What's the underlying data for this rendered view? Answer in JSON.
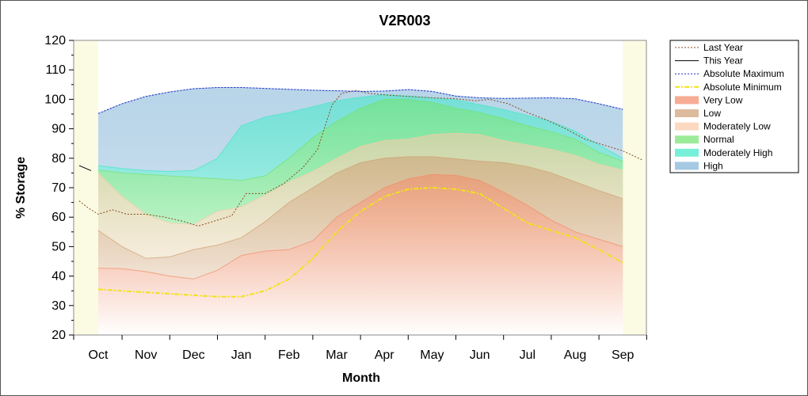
{
  "chart_data": {
    "type": "area",
    "title": "V2R003",
    "xlabel": "Month",
    "ylabel": "% Storage",
    "ylim": [
      20,
      120
    ],
    "yticks": [
      20,
      30,
      40,
      50,
      60,
      70,
      80,
      90,
      100,
      110,
      120
    ],
    "categories": [
      "Oct",
      "Nov",
      "Dec",
      "Jan",
      "Feb",
      "Mar",
      "Apr",
      "May",
      "Jun",
      "Jul",
      "Aug",
      "Sep"
    ],
    "legend_position": "right",
    "bands": [
      {
        "name": "High",
        "color": "#7fb2d6",
        "lower": "Moderately High upper",
        "upper": [
          [
            0,
            95.2
          ],
          [
            0.5,
            98.5
          ],
          [
            1,
            101
          ],
          [
            1.5,
            102.5
          ],
          [
            2,
            103.6
          ],
          [
            2.5,
            104
          ],
          [
            3,
            104
          ],
          [
            3.5,
            103.7
          ],
          [
            4,
            103.4
          ],
          [
            4.5,
            103.1
          ],
          [
            5,
            102.9
          ],
          [
            5.5,
            102.7
          ],
          [
            6,
            102.8
          ],
          [
            6.5,
            103.3
          ],
          [
            7,
            102.7
          ],
          [
            7.5,
            101.1
          ],
          [
            8,
            100.5
          ],
          [
            8.5,
            100.3
          ],
          [
            9,
            100.4
          ],
          [
            9.5,
            100.5
          ],
          [
            10,
            100.2
          ],
          [
            10.5,
            98.5
          ],
          [
            11,
            96.6
          ]
        ]
      },
      {
        "name": "Moderately High",
        "color": "#3ee8c8",
        "lower": "Normal upper",
        "upper": [
          [
            0,
            77.5
          ],
          [
            0.5,
            76.5
          ],
          [
            1,
            75.8
          ],
          [
            1.5,
            75.5
          ],
          [
            2,
            75.8
          ],
          [
            2.5,
            80
          ],
          [
            3,
            91
          ],
          [
            3.5,
            94
          ],
          [
            4,
            95.5
          ],
          [
            4.5,
            97.5
          ],
          [
            5,
            99.5
          ],
          [
            5.5,
            100.7
          ],
          [
            6,
            101.6
          ],
          [
            6.5,
            101.1
          ],
          [
            7,
            100.5
          ],
          [
            7.5,
            99.8
          ],
          [
            8,
            98.2
          ],
          [
            8.5,
            96.5
          ],
          [
            9,
            94.5
          ],
          [
            9.5,
            92.5
          ],
          [
            10,
            89.2
          ],
          [
            10.5,
            84.5
          ],
          [
            11,
            80
          ]
        ]
      },
      {
        "name": "Normal",
        "color": "#72e36e",
        "lower": "Moderately Low upper",
        "upper": [
          [
            0,
            76
          ],
          [
            0.5,
            75
          ],
          [
            1,
            74.5
          ],
          [
            1.5,
            74
          ],
          [
            2,
            73.5
          ],
          [
            2.5,
            73
          ],
          [
            3,
            72.5
          ],
          [
            3.5,
            74
          ],
          [
            4,
            80
          ],
          [
            4.5,
            87
          ],
          [
            5,
            92.5
          ],
          [
            5.5,
            97
          ],
          [
            6,
            100
          ],
          [
            6.5,
            100
          ],
          [
            7,
            99
          ],
          [
            7.5,
            97
          ],
          [
            8,
            95.5
          ],
          [
            8.5,
            93.5
          ],
          [
            9,
            91
          ],
          [
            9.5,
            89
          ],
          [
            10,
            86.5
          ],
          [
            10.5,
            82
          ],
          [
            11,
            79
          ]
        ]
      },
      {
        "name": "Moderately Low",
        "color": "#fbcaa8",
        "lower": "Low upper",
        "upper": [
          [
            0,
            75
          ],
          [
            0.5,
            67
          ],
          [
            1,
            61
          ],
          [
            1.5,
            58
          ],
          [
            2,
            57.5
          ],
          [
            2.5,
            62
          ],
          [
            3,
            63.5
          ],
          [
            3.5,
            67.5
          ],
          [
            4,
            72
          ],
          [
            4.5,
            75.5
          ],
          [
            5,
            80
          ],
          [
            5.5,
            84
          ],
          [
            6,
            86
          ],
          [
            6.5,
            86.5
          ],
          [
            7,
            88
          ],
          [
            7.5,
            88.5
          ],
          [
            8,
            88
          ],
          [
            8.5,
            86
          ],
          [
            9,
            84.5
          ],
          [
            9.5,
            83
          ],
          [
            10,
            81
          ],
          [
            10.5,
            78
          ],
          [
            11,
            76
          ]
        ]
      },
      {
        "name": "Low",
        "color": "#cd9f72",
        "lower": "Very Low upper",
        "upper": [
          [
            0,
            55.5
          ],
          [
            0.5,
            50
          ],
          [
            1,
            46
          ],
          [
            1.5,
            46.5
          ],
          [
            2,
            49
          ],
          [
            2.5,
            50.5
          ],
          [
            3,
            53
          ],
          [
            3.5,
            58.5
          ],
          [
            4,
            65
          ],
          [
            4.5,
            70
          ],
          [
            5,
            75
          ],
          [
            5.5,
            78.5
          ],
          [
            6,
            80
          ],
          [
            6.5,
            80.5
          ],
          [
            7,
            80.5
          ],
          [
            7.5,
            79.8
          ],
          [
            8,
            79
          ],
          [
            8.5,
            78.5
          ],
          [
            9,
            77.2
          ],
          [
            9.5,
            75
          ],
          [
            10,
            72
          ],
          [
            10.5,
            69
          ],
          [
            11,
            66.3
          ]
        ]
      },
      {
        "name": "Very Low",
        "color": "#f38a66",
        "lower": "axis floor",
        "upper": [
          [
            0,
            42.7
          ],
          [
            0.5,
            42.5
          ],
          [
            1,
            41.5
          ],
          [
            1.5,
            40
          ],
          [
            2,
            39
          ],
          [
            2.5,
            42
          ],
          [
            3,
            47
          ],
          [
            3.5,
            48.5
          ],
          [
            4,
            49
          ],
          [
            4.5,
            52
          ],
          [
            5,
            60
          ],
          [
            5.5,
            65
          ],
          [
            6,
            70
          ],
          [
            6.5,
            73
          ],
          [
            7,
            74.5
          ],
          [
            7.5,
            74.2
          ],
          [
            8,
            72.5
          ],
          [
            8.5,
            68.5
          ],
          [
            9,
            64
          ],
          [
            9.5,
            59
          ],
          [
            10,
            55
          ],
          [
            10.5,
            52.5
          ],
          [
            11,
            50
          ]
        ]
      }
    ],
    "series": [
      {
        "name": "Last Year",
        "color": "#8a4a1c",
        "style": "dotted",
        "points": [
          [
            -0.4,
            65.5
          ],
          [
            -0.2,
            63
          ],
          [
            0,
            61
          ],
          [
            0.3,
            62.5
          ],
          [
            0.6,
            61
          ],
          [
            1,
            61
          ],
          [
            1.4,
            60
          ],
          [
            1.8,
            58.5
          ],
          [
            2.1,
            57
          ],
          [
            2.4,
            58.5
          ],
          [
            2.8,
            60.5
          ],
          [
            3.1,
            68
          ],
          [
            3.5,
            68
          ],
          [
            3.9,
            71.5
          ],
          [
            4.3,
            77
          ],
          [
            4.6,
            83
          ],
          [
            4.9,
            98
          ],
          [
            5.1,
            102
          ],
          [
            5.4,
            103
          ],
          [
            5.7,
            102
          ],
          [
            6,
            101.5
          ],
          [
            6.5,
            101
          ],
          [
            7,
            100.5
          ],
          [
            7.5,
            100.2
          ],
          [
            7.9,
            99.5
          ],
          [
            8.2,
            100
          ],
          [
            8.6,
            98.5
          ],
          [
            9,
            95.5
          ],
          [
            9.4,
            93
          ],
          [
            9.8,
            90
          ],
          [
            10.2,
            86.5
          ],
          [
            10.6,
            84.5
          ],
          [
            11,
            82.5
          ],
          [
            11.4,
            79.5
          ]
        ]
      },
      {
        "name": "This Year",
        "color": "#000000",
        "style": "solid",
        "points": [
          [
            -0.4,
            77.5
          ],
          [
            -0.15,
            75.8
          ]
        ]
      },
      {
        "name": "Absolute Maximum",
        "color": "#2222cc",
        "style": "dotted",
        "points": [
          [
            0,
            95.2
          ],
          [
            0.5,
            98.5
          ],
          [
            1,
            101
          ],
          [
            1.5,
            102.5
          ],
          [
            2,
            103.6
          ],
          [
            2.5,
            104
          ],
          [
            3,
            104
          ],
          [
            3.5,
            103.7
          ],
          [
            4,
            103.4
          ],
          [
            4.5,
            103.1
          ],
          [
            5,
            102.9
          ],
          [
            5.5,
            102.7
          ],
          [
            6,
            102.8
          ],
          [
            6.5,
            103.3
          ],
          [
            7,
            102.7
          ],
          [
            7.5,
            101.1
          ],
          [
            8,
            100.5
          ],
          [
            8.5,
            100.3
          ],
          [
            9,
            100.4
          ],
          [
            9.5,
            100.5
          ],
          [
            10,
            100.2
          ],
          [
            10.5,
            98.5
          ],
          [
            11,
            96.6
          ]
        ]
      },
      {
        "name": "Absolute Minimum",
        "color": "#f2e21a",
        "style": "dashdot",
        "points": [
          [
            0,
            35.5
          ],
          [
            0.5,
            35
          ],
          [
            1,
            34.5
          ],
          [
            1.5,
            34
          ],
          [
            2,
            33.5
          ],
          [
            2.5,
            33
          ],
          [
            3,
            33
          ],
          [
            3.5,
            35
          ],
          [
            4,
            39
          ],
          [
            4.5,
            46
          ],
          [
            5,
            55
          ],
          [
            5.5,
            62
          ],
          [
            6,
            67
          ],
          [
            6.5,
            69.5
          ],
          [
            7,
            70
          ],
          [
            7.5,
            69.5
          ],
          [
            8,
            68
          ],
          [
            8.5,
            63
          ],
          [
            9,
            58
          ],
          [
            9.5,
            55.5
          ],
          [
            10,
            53
          ],
          [
            10.5,
            49
          ],
          [
            11,
            44.5
          ]
        ]
      }
    ],
    "legend": [
      {
        "label": "Last Year",
        "kind": "line",
        "color": "#8a4a1c",
        "dash": "2,2"
      },
      {
        "label": "This Year",
        "kind": "line",
        "color": "#000000",
        "dash": ""
      },
      {
        "label": "Absolute Maximum",
        "kind": "line",
        "color": "#2222cc",
        "dash": "2,2"
      },
      {
        "label": "Absolute Minimum",
        "kind": "line",
        "color": "#f2e21a",
        "dash": "6,2,2,2"
      },
      {
        "label": "Very Low",
        "kind": "box",
        "color": "#f38a66"
      },
      {
        "label": "Low",
        "kind": "box",
        "color": "#cd9f72"
      },
      {
        "label": "Moderately Low",
        "kind": "box",
        "color": "#fbcaa8"
      },
      {
        "label": "Normal",
        "kind": "box",
        "color": "#72e36e"
      },
      {
        "label": "Moderately High",
        "kind": "box",
        "color": "#3ee8c8"
      },
      {
        "label": "High",
        "kind": "box",
        "color": "#7fb2d6"
      }
    ],
    "background_color": "#fbfbe4"
  }
}
